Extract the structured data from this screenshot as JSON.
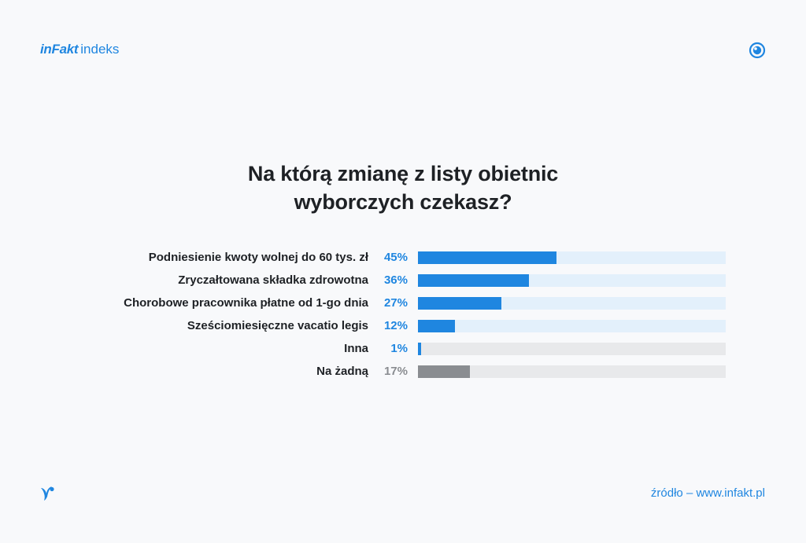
{
  "brand": {
    "logo": "inFakt",
    "suffix": "indeks"
  },
  "icons": {
    "corner": "eye-icon",
    "footer": "bird-logo-icon"
  },
  "colors": {
    "accent": "#1f86e0",
    "track_blue": "#e3f0fb",
    "track_grey": "#e8e9eb",
    "grey_bar": "#8a8d91",
    "grey_text": "#8a8d91",
    "text": "#1e2125"
  },
  "chart_data": {
    "type": "bar",
    "orientation": "horizontal",
    "title_lines": [
      "Na którą zmianę z listy obietnic",
      "wyborczych czekasz?"
    ],
    "categories": [
      "Podniesienie kwoty wolnej do 60 tys. zł",
      "Zryczałtowana składka zdrowotna",
      "Chorobowe pracownika płatne od 1-go dnia",
      "Sześciomiesięczne vacatio legis",
      "Inna",
      "Na żadną"
    ],
    "values": [
      45,
      36,
      27,
      12,
      1,
      17
    ],
    "value_labels": [
      "45%",
      "36%",
      "27%",
      "12%",
      "1%",
      "17%"
    ],
    "highlight": [
      "blue",
      "blue",
      "blue",
      "blue",
      "blue",
      "grey"
    ],
    "xlim": [
      0,
      100
    ],
    "grid": false
  },
  "footer": {
    "source": "źródło – www.infakt.pl"
  }
}
